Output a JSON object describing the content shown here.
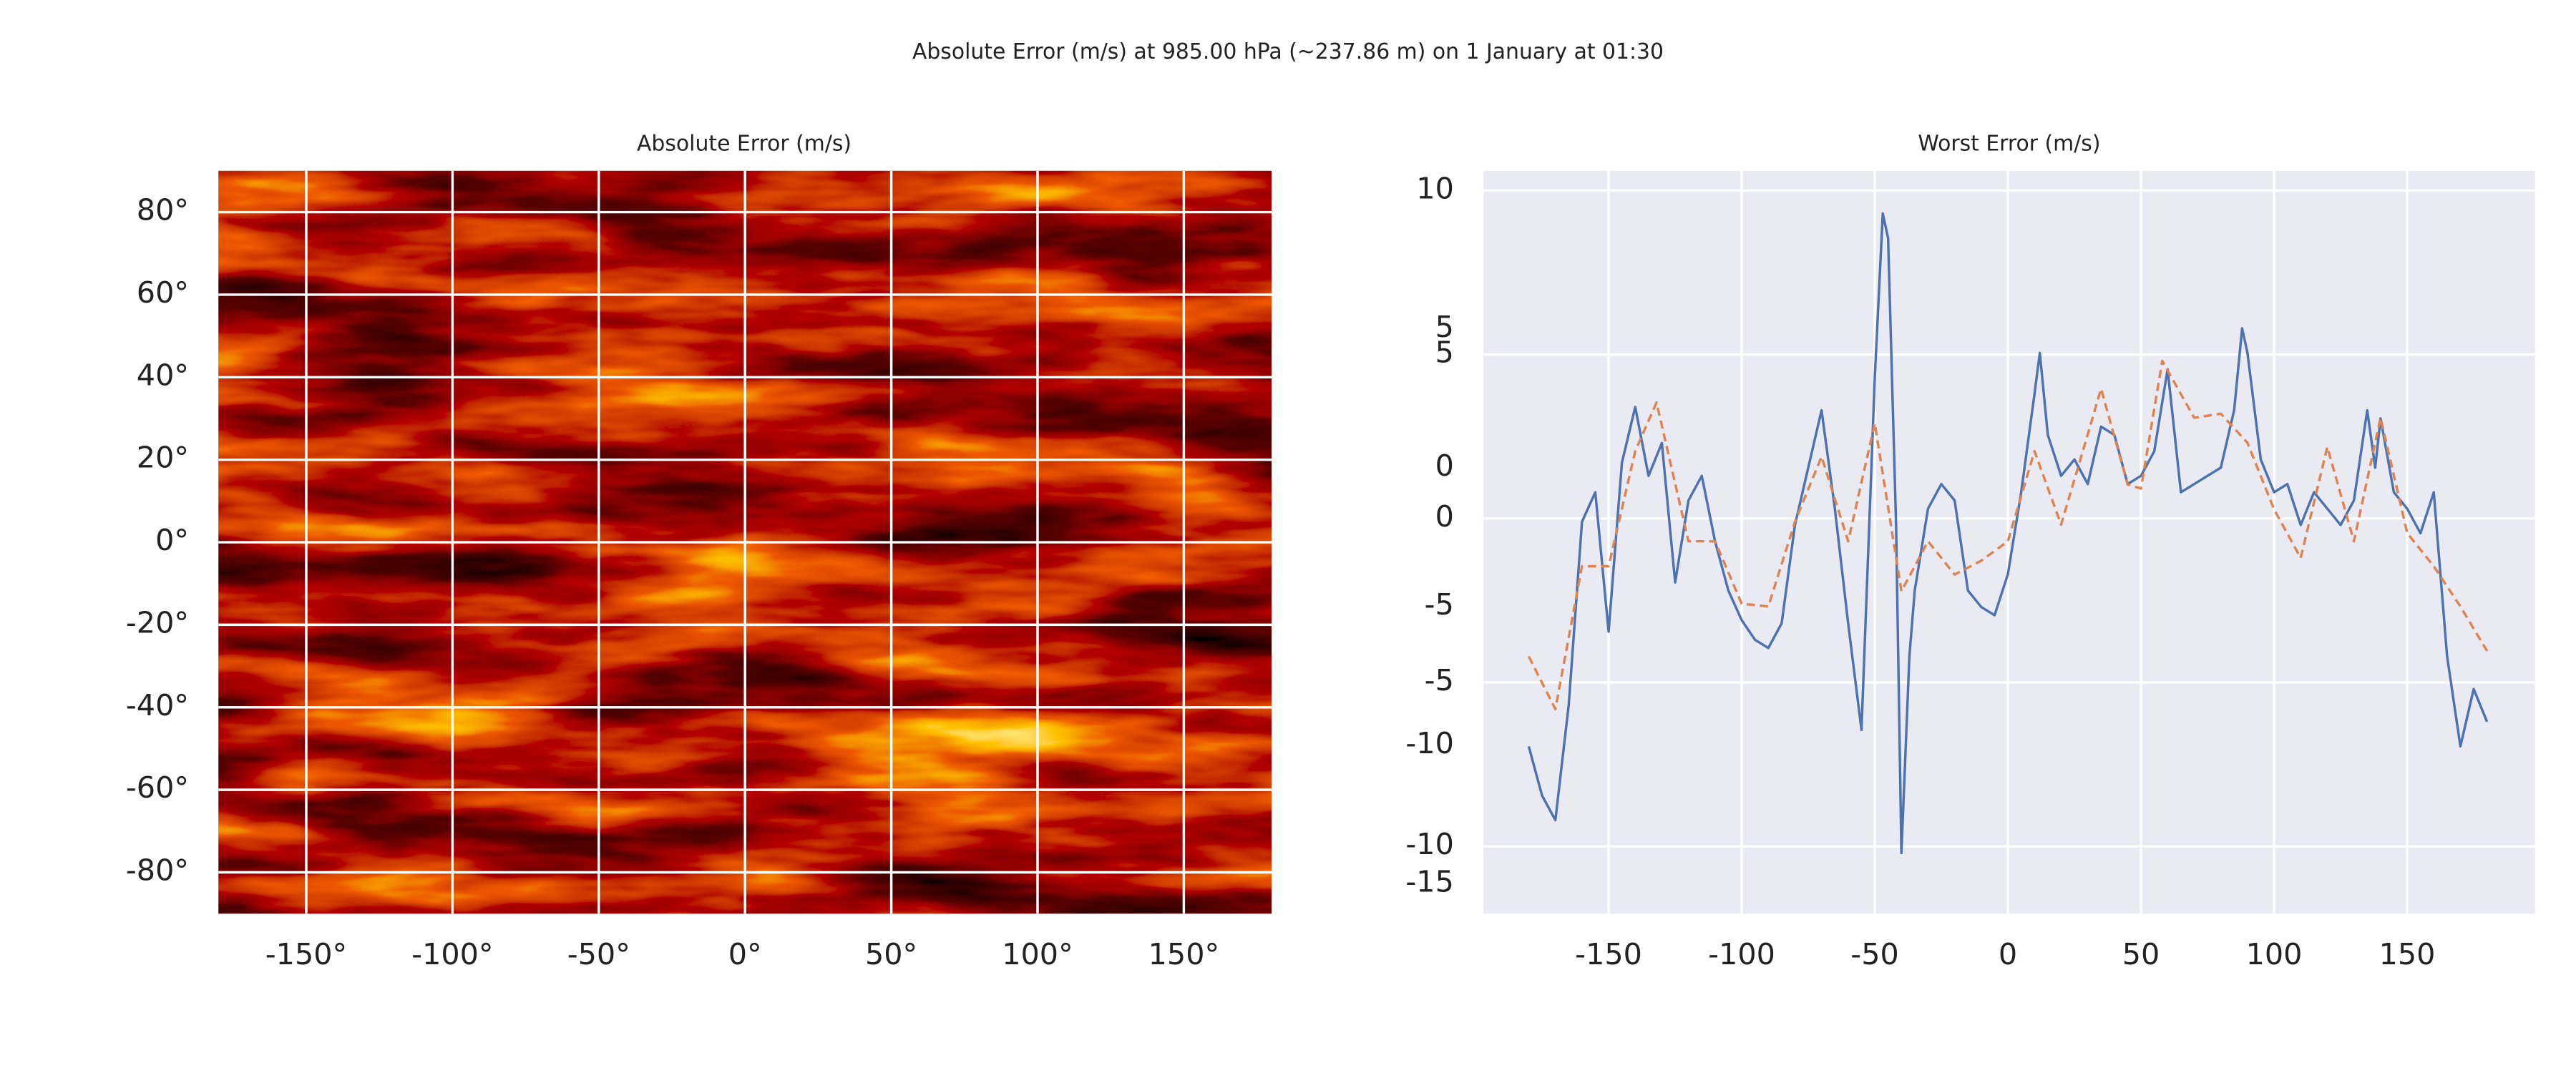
{
  "title": "Absolute Error (m/s) at 985.00 hPa (~237.86 m) on 1 January at 01:30",
  "chart_data": [
    {
      "type": "map",
      "title": "Absolute Error (m/s)",
      "grid": true,
      "xlim": [
        -180,
        180
      ],
      "ylim": [
        -90,
        90
      ],
      "xticks": [
        {
          "value": -150,
          "label": "-150°"
        },
        {
          "value": -100,
          "label": "-100°"
        },
        {
          "value": -50,
          "label": "-50°"
        },
        {
          "value": 0,
          "label": "0°"
        },
        {
          "value": 50,
          "label": "50°"
        },
        {
          "value": 100,
          "label": "100°"
        },
        {
          "value": 150,
          "label": "150°"
        }
      ],
      "yticks": [
        {
          "value": -80,
          "label": "-80°"
        },
        {
          "value": -60,
          "label": "-60°"
        },
        {
          "value": -40,
          "label": "-40°"
        },
        {
          "value": -20,
          "label": "-20°"
        },
        {
          "value": 0,
          "label": "0°"
        },
        {
          "value": 20,
          "label": "20°"
        },
        {
          "value": 40,
          "label": "40°"
        },
        {
          "value": 60,
          "label": "60°"
        },
        {
          "value": 80,
          "label": "80°"
        }
      ]
    },
    {
      "type": "line",
      "title": "Worst Error (m/s)",
      "grid": true,
      "xlim": [
        -197,
        198
      ],
      "ylim": [
        -12.05,
        10.6
      ],
      "y2lim": [
        -16.07,
        10.7
      ],
      "xticks": [
        -150,
        -100,
        -50,
        0,
        50,
        100,
        150
      ],
      "yticks": [
        -10,
        -5,
        0,
        5,
        10
      ],
      "y2ticks": [
        -15,
        -10,
        -5,
        0,
        5
      ],
      "series": [
        {
          "color": "#4c72b0",
          "linestyle": "solid",
          "x": [
            -180,
            -175,
            -170,
            -165,
            -160,
            -155,
            -150,
            -145,
            -140,
            -135,
            -130,
            -125,
            -120,
            -115,
            -110,
            -105,
            -100,
            -95,
            -90,
            -85,
            -80,
            -75,
            -70,
            -65,
            -60,
            -55,
            -50,
            -47,
            -45,
            -42,
            -40,
            -37,
            -35,
            -30,
            -25,
            -20,
            -15,
            -10,
            -5,
            0,
            5,
            10,
            12,
            15,
            20,
            25,
            30,
            35,
            40,
            45,
            50,
            55,
            60,
            65,
            70,
            75,
            80,
            85,
            88,
            90,
            95,
            100,
            105,
            110,
            115,
            120,
            125,
            130,
            135,
            138,
            140,
            145,
            150,
            155,
            160,
            165,
            170,
            175,
            180
          ],
          "values": [
            -6.95,
            -8.45,
            -9.2,
            -5.7,
            -0.1,
            0.8,
            -3.45,
            1.7,
            3.4,
            1.3,
            2.3,
            -1.95,
            0.55,
            1.3,
            -0.7,
            -2.2,
            -3.1,
            -3.7,
            -3.95,
            -3.2,
            -0.2,
            1.55,
            3.3,
            0.3,
            -3.2,
            -6.45,
            4.3,
            9.3,
            8.55,
            -0.2,
            -10.2,
            -4.2,
            -2.2,
            0.3,
            1.05,
            0.55,
            -2.2,
            -2.7,
            -2.95,
            -1.7,
            0.8,
            3.8,
            5.05,
            2.55,
            1.3,
            1.8,
            1.05,
            2.8,
            2.55,
            1.05,
            1.3,
            2.05,
            4.55,
            0.8,
            1.05,
            1.3,
            1.55,
            3.3,
            5.8,
            5.05,
            1.8,
            0.8,
            1.05,
            -0.2,
            0.8,
            0.3,
            -0.2,
            0.55,
            3.3,
            1.55,
            3.05,
            0.8,
            0.3,
            -0.45,
            0.8,
            -4.2,
            -6.95,
            -5.2,
            -6.2
          ]
        },
        {
          "color": "#dd8452",
          "linestyle": "dashed",
          "axis": "y2",
          "x": [
            -180,
            -170,
            -160,
            -150,
            -140,
            -132,
            -120,
            -110,
            -100,
            -90,
            -80,
            -70,
            -60,
            -50,
            -40,
            -30,
            -20,
            -10,
            0,
            10,
            20,
            30,
            35,
            45,
            50,
            58,
            70,
            80,
            90,
            100,
            110,
            120,
            130,
            140,
            150,
            160,
            170,
            180
          ],
          "values": [
            -6.8,
            -8.7,
            -3.55,
            -3.55,
            0.6,
            2.35,
            -2.65,
            -2.65,
            -4.9,
            -5.0,
            -1.95,
            0.4,
            -2.65,
            1.6,
            -4.45,
            -2.65,
            -3.85,
            -3.35,
            -2.65,
            0.6,
            -2.05,
            1.2,
            2.85,
            -0.6,
            -0.75,
            3.85,
            1.8,
            1.95,
            0.9,
            -1.5,
            -3.25,
            0.75,
            -2.65,
            1.8,
            -2.35,
            -3.55,
            -5.0,
            -6.6
          ]
        }
      ]
    }
  ]
}
